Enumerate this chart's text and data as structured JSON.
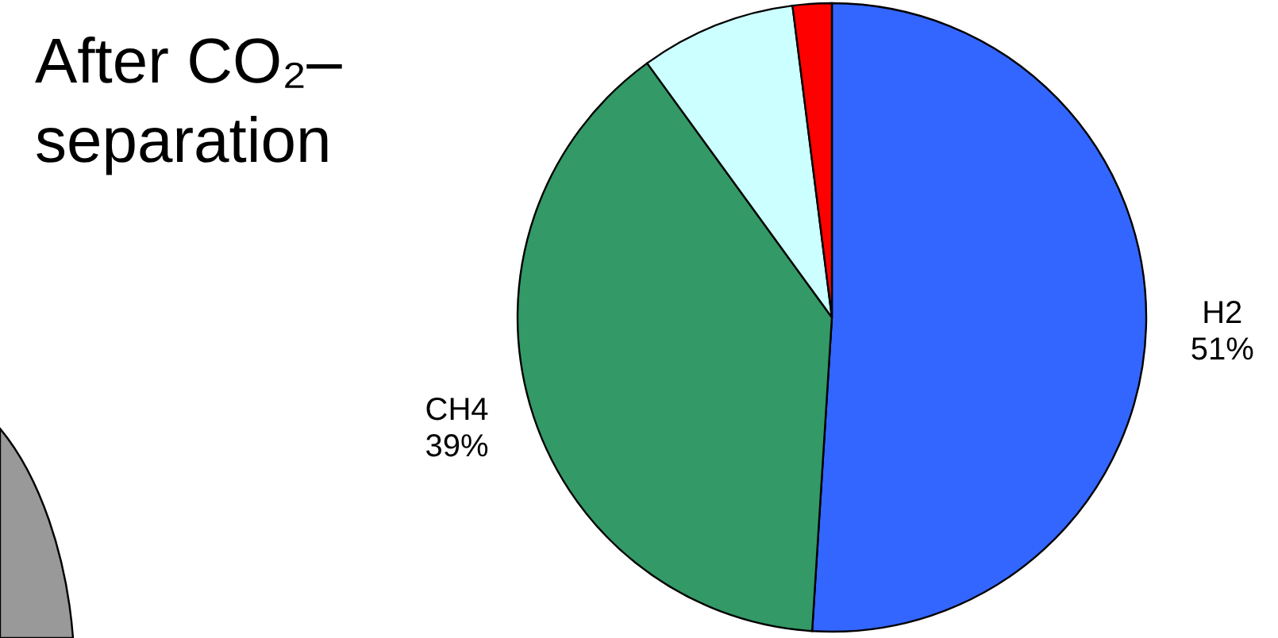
{
  "chart_data": {
    "type": "pie",
    "title": "After CO₂–separation",
    "categories": [
      "H2",
      "CH4",
      null,
      null
    ],
    "values": [
      51,
      39,
      8,
      2
    ],
    "colors": [
      "#3366ff",
      "#339966",
      "#ccffff",
      "#ff0000"
    ],
    "value_labels": [
      "51%",
      "39%",
      null,
      null
    ]
  }
}
